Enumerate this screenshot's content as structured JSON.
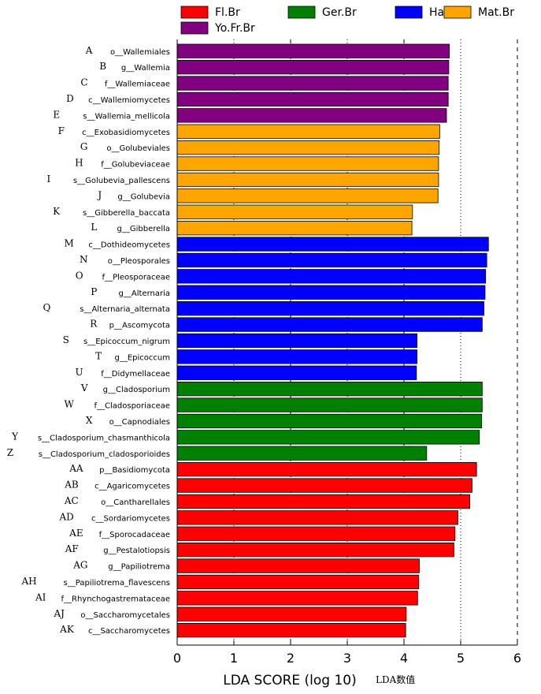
{
  "chart_data": {
    "type": "bar",
    "orientation": "horizontal",
    "xlabel": "LDA SCORE (log 10)",
    "xlabel_note": "LDA数值",
    "xlim": [
      0,
      6
    ],
    "xticks": [
      "0",
      "1",
      "2",
      "3",
      "4",
      "5",
      "6"
    ],
    "legend_position": "top",
    "series": [
      {
        "name": "Fl.Br",
        "color": "#ff0000"
      },
      {
        "name": "Ger.Br",
        "color": "#008000"
      },
      {
        "name": "Hard.Br",
        "color": "#0000ff"
      },
      {
        "name": "Mat.Br",
        "color": "#ffa500"
      },
      {
        "name": "Yo.Fr.Br",
        "color": "#800080"
      }
    ],
    "bars": [
      {
        "letter": "A",
        "label": "o__Wallemiales",
        "value": 4.8,
        "group": "Yo.Fr.Br"
      },
      {
        "letter": "B",
        "label": "g__Wallemia",
        "value": 4.79,
        "group": "Yo.Fr.Br"
      },
      {
        "letter": "C",
        "label": "f__Wallemiaceae",
        "value": 4.78,
        "group": "Yo.Fr.Br"
      },
      {
        "letter": "D",
        "label": "c__Wallemiomycetes",
        "value": 4.78,
        "group": "Yo.Fr.Br"
      },
      {
        "letter": "E",
        "label": "s__Wallemia_mellicola",
        "value": 4.75,
        "group": "Yo.Fr.Br"
      },
      {
        "letter": "F",
        "label": "c__Exobasidiomycetes",
        "value": 4.63,
        "group": "Mat.Br"
      },
      {
        "letter": "G",
        "label": "o__Golubeviales",
        "value": 4.62,
        "group": "Mat.Br"
      },
      {
        "letter": "H",
        "label": "f__Golubeviaceae",
        "value": 4.61,
        "group": "Mat.Br"
      },
      {
        "letter": "I",
        "label": "s__Golubevia_pallescens",
        "value": 4.61,
        "group": "Mat.Br"
      },
      {
        "letter": "J",
        "label": "g__Golubevia",
        "value": 4.6,
        "group": "Mat.Br"
      },
      {
        "letter": "K",
        "label": "s__Gibberella_baccata",
        "value": 4.15,
        "group": "Mat.Br"
      },
      {
        "letter": "L",
        "label": "g__Gibberella",
        "value": 4.14,
        "group": "Mat.Br"
      },
      {
        "letter": "M",
        "label": "c__Dothideomycetes",
        "value": 5.49,
        "group": "Hard.Br"
      },
      {
        "letter": "N",
        "label": "o__Pleosporales",
        "value": 5.46,
        "group": "Hard.Br"
      },
      {
        "letter": "O",
        "label": "f__Pleosporaceae",
        "value": 5.44,
        "group": "Hard.Br"
      },
      {
        "letter": "P",
        "label": "g__Alternaria",
        "value": 5.43,
        "group": "Hard.Br"
      },
      {
        "letter": "Q",
        "label": "s__Alternaria_alternata",
        "value": 5.41,
        "group": "Hard.Br"
      },
      {
        "letter": "R",
        "label": "p__Ascomycota",
        "value": 5.38,
        "group": "Hard.Br"
      },
      {
        "letter": "S",
        "label": "s__Epicoccum_nigrum",
        "value": 4.23,
        "group": "Hard.Br"
      },
      {
        "letter": "T",
        "label": "g__Epicoccum",
        "value": 4.23,
        "group": "Hard.Br"
      },
      {
        "letter": "U",
        "label": "f__Didymellaceae",
        "value": 4.22,
        "group": "Hard.Br"
      },
      {
        "letter": "V",
        "label": "g__Cladosporium",
        "value": 5.38,
        "group": "Ger.Br"
      },
      {
        "letter": "W",
        "label": "f__Cladosporiaceae",
        "value": 5.38,
        "group": "Ger.Br"
      },
      {
        "letter": "X",
        "label": "o__Capnodiales",
        "value": 5.37,
        "group": "Ger.Br"
      },
      {
        "letter": "Y",
        "label": "s__Cladosporium_chasmanthicola",
        "value": 5.33,
        "group": "Ger.Br"
      },
      {
        "letter": "Z",
        "label": "s__Cladosporium_cladosporioides",
        "value": 4.4,
        "group": "Ger.Br"
      },
      {
        "letter": "AA",
        "label": "p__Basidiomycota",
        "value": 5.28,
        "group": "Fl.Br"
      },
      {
        "letter": "AB",
        "label": "c__Agaricomycetes",
        "value": 5.2,
        "group": "Fl.Br"
      },
      {
        "letter": "AC",
        "label": "o__Cantharellales",
        "value": 5.16,
        "group": "Fl.Br"
      },
      {
        "letter": "AD",
        "label": "c__Sordariomycetes",
        "value": 4.95,
        "group": "Fl.Br"
      },
      {
        "letter": "AE",
        "label": "f__Sporocadaceae",
        "value": 4.9,
        "group": "Fl.Br"
      },
      {
        "letter": "AF",
        "label": "g__Pestalotiopsis",
        "value": 4.88,
        "group": "Fl.Br"
      },
      {
        "letter": "AG",
        "label": "g__Papiliotrema",
        "value": 4.27,
        "group": "Fl.Br"
      },
      {
        "letter": "AH",
        "label": "s__Papiliotrema_flavescens",
        "value": 4.26,
        "group": "Fl.Br"
      },
      {
        "letter": "AI",
        "label": "f__Rhynchogastremataceae",
        "value": 4.24,
        "group": "Fl.Br"
      },
      {
        "letter": "AJ",
        "label": "o__Saccharomycetales",
        "value": 4.04,
        "group": "Fl.Br"
      },
      {
        "letter": "AK",
        "label": "c__Saccharomycetes",
        "value": 4.03,
        "group": "Fl.Br"
      }
    ]
  }
}
